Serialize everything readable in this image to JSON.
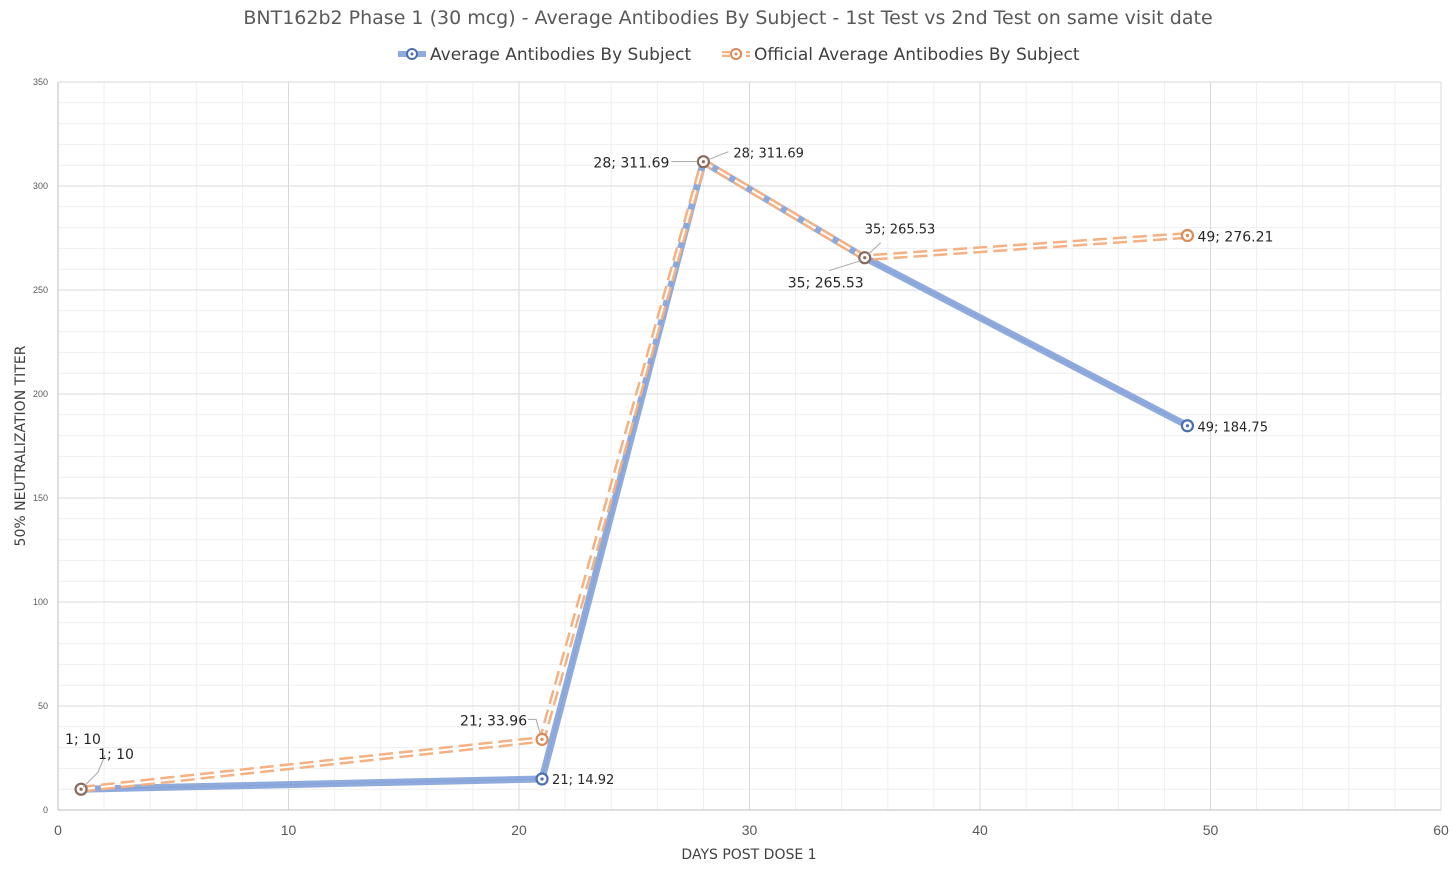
{
  "chart_data": {
    "type": "line",
    "title": "BNT162b2 Phase 1 (30 mcg) - Average Antibodies By Subject - 1st Test vs 2nd Test on same visit date",
    "xlabel": "DAYS POST DOSE 1",
    "ylabel": "50% NEUTRALIZATION TITER",
    "xlim": [
      0,
      60
    ],
    "ylim": [
      0,
      350
    ],
    "x_ticks": [
      "0",
      "10",
      "20",
      "30",
      "40",
      "50",
      "60"
    ],
    "y_ticks": [
      "0",
      "50",
      "100",
      "150",
      "200",
      "250",
      "300",
      "350"
    ],
    "grid": true,
    "legend_position": "top",
    "series": [
      {
        "name": "Average Antibodies By Subject",
        "color": "#8faadc",
        "style": "solid",
        "points": [
          {
            "x": 1,
            "y": 10,
            "label": "1; 10"
          },
          {
            "x": 21,
            "y": 14.92,
            "label": "21; 14.92"
          },
          {
            "x": 28,
            "y": 311.69,
            "label": "28; 311.69"
          },
          {
            "x": 35,
            "y": 265.53,
            "label": "35; 265.53"
          },
          {
            "x": 49,
            "y": 184.75,
            "label": "49; 184.75"
          }
        ]
      },
      {
        "name": "Official Average Antibodies By Subject",
        "color": "#f4b183",
        "style": "dashed",
        "points": [
          {
            "x": 1,
            "y": 10,
            "label": "1; 10"
          },
          {
            "x": 21,
            "y": 33.96,
            "label": "21; 33.96"
          },
          {
            "x": 28,
            "y": 311.69,
            "label": "28; 311.69"
          },
          {
            "x": 35,
            "y": 265.53,
            "label": "35; 265.53"
          },
          {
            "x": 49,
            "y": 276.21,
            "label": "49; 276.21"
          }
        ]
      }
    ]
  }
}
